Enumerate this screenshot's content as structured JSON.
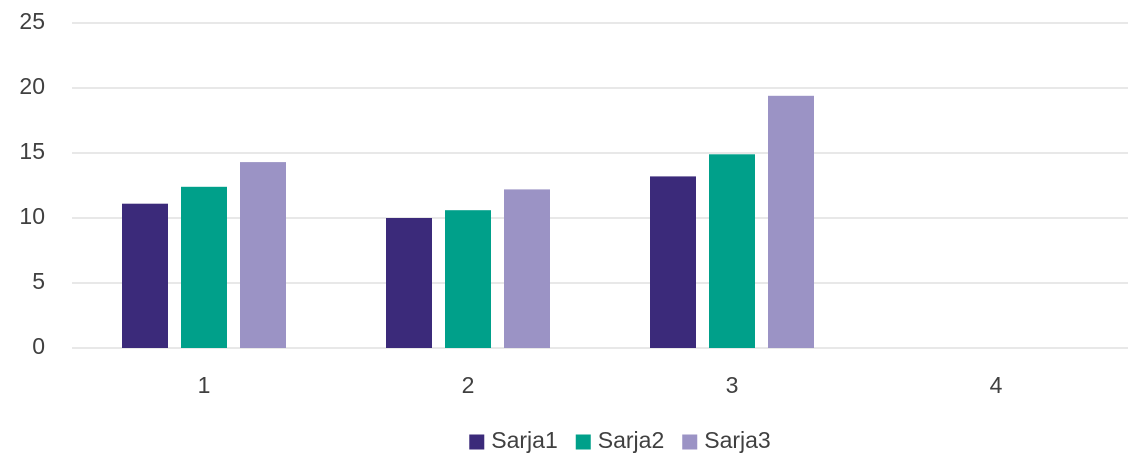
{
  "chart_data": {
    "type": "bar",
    "categories": [
      "1",
      "2",
      "3",
      "4"
    ],
    "series": [
      {
        "name": "Sarja1",
        "color": "#3b2a7a",
        "values": [
          11.1,
          10.0,
          13.2,
          null
        ]
      },
      {
        "name": "Sarja2",
        "color": "#00a08a",
        "values": [
          12.4,
          10.6,
          14.9,
          null
        ]
      },
      {
        "name": "Sarja3",
        "color": "#9b93c5",
        "values": [
          14.3,
          12.2,
          19.4,
          null
        ]
      }
    ],
    "ylim": [
      0,
      25
    ],
    "yticks": [
      0,
      5,
      10,
      15,
      20,
      25
    ],
    "grid": true,
    "legend": "bottom"
  }
}
